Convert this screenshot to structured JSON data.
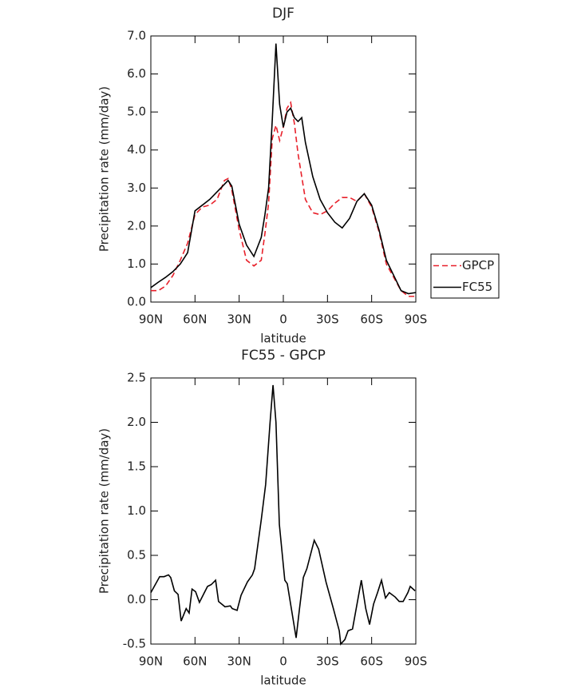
{
  "chart_data": [
    {
      "type": "line",
      "title": "DJF",
      "xlabel": "latitude",
      "ylabel": "Precipitation rate (mm/day)",
      "x": [
        90,
        85,
        80,
        75,
        70,
        65,
        60,
        55,
        50,
        45,
        40,
        37.5,
        35,
        30,
        25,
        20,
        15,
        12.5,
        10,
        7.5,
        5,
        2.5,
        0,
        -2.5,
        -5,
        -7.5,
        -10,
        -12.5,
        -15,
        -20,
        -25,
        -30,
        -35,
        -40,
        -45,
        -50,
        -55,
        -60,
        -65,
        -70,
        -75,
        -80,
        -85,
        -90
      ],
      "series": [
        {
          "name": "GPCP",
          "color": "#e8202a",
          "style": "dashed",
          "values": [
            0.3,
            0.3,
            0.42,
            0.7,
            1.1,
            1.55,
            2.3,
            2.5,
            2.55,
            2.7,
            3.2,
            3.25,
            2.95,
            1.9,
            1.1,
            0.95,
            1.1,
            1.8,
            2.6,
            4.3,
            4.65,
            4.25,
            4.6,
            5.1,
            5.25,
            4.7,
            3.9,
            3.3,
            2.7,
            2.35,
            2.3,
            2.4,
            2.6,
            2.75,
            2.75,
            2.65,
            2.85,
            2.5,
            1.85,
            1.0,
            0.65,
            0.3,
            0.15,
            0.15
          ]
        },
        {
          "name": "FC55",
          "color": "#000000",
          "style": "solid",
          "values": [
            0.38,
            0.52,
            0.65,
            0.8,
            1.0,
            1.3,
            2.4,
            2.55,
            2.7,
            2.9,
            3.1,
            3.2,
            3.05,
            2.05,
            1.5,
            1.2,
            1.7,
            2.3,
            3.0,
            4.8,
            6.8,
            5.2,
            4.6,
            5.0,
            5.1,
            4.85,
            4.75,
            4.85,
            4.2,
            3.3,
            2.7,
            2.35,
            2.1,
            1.95,
            2.2,
            2.65,
            2.85,
            2.55,
            1.9,
            1.1,
            0.7,
            0.3,
            0.22,
            0.25
          ]
        }
      ],
      "xlim": [
        90,
        -90
      ],
      "xticks": [
        {
          "value": 90,
          "label": "90N"
        },
        {
          "value": 60,
          "label": "60N"
        },
        {
          "value": 30,
          "label": "30N"
        },
        0,
        {
          "value": -30,
          "label": "30S"
        },
        {
          "value": -60,
          "label": "60S"
        },
        {
          "value": -90,
          "label": "90S"
        }
      ],
      "ylim": [
        0,
        7
      ],
      "yticks": [
        {
          "value": 0,
          "label": "0.0"
        },
        {
          "value": 1,
          "label": "1.0"
        },
        {
          "value": 2,
          "label": "2.0"
        },
        {
          "value": 3,
          "label": "3.0"
        },
        {
          "value": 4,
          "label": "4.0"
        },
        {
          "value": 5,
          "label": "5.0"
        },
        {
          "value": 6,
          "label": "6.0"
        },
        {
          "value": 7,
          "label": "7.0"
        }
      ],
      "legend": "outside-right"
    },
    {
      "type": "line",
      "title": "FC55 - GPCP",
      "xlabel": "latitude",
      "ylabel": "Precipitation rate (mm/day)",
      "x": [
        90,
        84,
        81,
        78,
        76.5,
        74,
        71.5,
        69.4,
        66,
        64,
        62,
        59.6,
        57,
        51.5,
        49,
        46,
        44,
        39.6,
        36,
        34.7,
        31.4,
        28.7,
        24.4,
        21,
        19.5,
        15,
        12,
        9,
        7,
        5,
        2.7,
        -1,
        -2.7,
        -8.7,
        -11,
        -13.6,
        -16,
        -21,
        -24,
        -29,
        -34,
        -38,
        -39,
        -41.8,
        -44,
        -47,
        -53,
        -56,
        -58.6,
        -61.3,
        -64,
        -66.7,
        -69.4,
        -72,
        -76,
        -78.7,
        -81.4,
        -84.6,
        -86.2,
        -89.5
      ],
      "values": [
        0.08,
        0.26,
        0.26,
        0.28,
        0.25,
        0.1,
        0.06,
        -0.24,
        -0.1,
        -0.15,
        0.12,
        0.09,
        -0.03,
        0.15,
        0.17,
        0.22,
        -0.02,
        -0.08,
        -0.07,
        -0.1,
        -0.12,
        0.05,
        0.2,
        0.28,
        0.35,
        0.9,
        1.3,
        2.0,
        2.42,
        2.0,
        0.85,
        0.22,
        0.18,
        -0.43,
        -0.1,
        0.25,
        0.35,
        0.67,
        0.57,
        0.2,
        -0.1,
        -0.35,
        -0.5,
        -0.45,
        -0.35,
        -0.33,
        0.22,
        -0.1,
        -0.28,
        -0.05,
        0.08,
        0.22,
        0.02,
        0.08,
        0.03,
        -0.02,
        -0.02,
        0.08,
        0.15,
        0.1
      ],
      "color": "#000000",
      "xlim": [
        90,
        -90
      ],
      "xticks": [
        {
          "value": 90,
          "label": "90N"
        },
        {
          "value": 60,
          "label": "60N"
        },
        {
          "value": 30,
          "label": "30N"
        },
        0,
        {
          "value": -30,
          "label": "30S"
        },
        {
          "value": -60,
          "label": "60S"
        },
        {
          "value": -90,
          "label": "90S"
        }
      ],
      "ylim": [
        -0.5,
        2.5
      ],
      "yticks": [
        -0.5,
        {
          "value": 0,
          "label": "0.0"
        },
        0.5,
        {
          "value": 1,
          "label": "1.0"
        },
        1.5,
        {
          "value": 2,
          "label": "2.0"
        },
        2.5
      ]
    }
  ]
}
